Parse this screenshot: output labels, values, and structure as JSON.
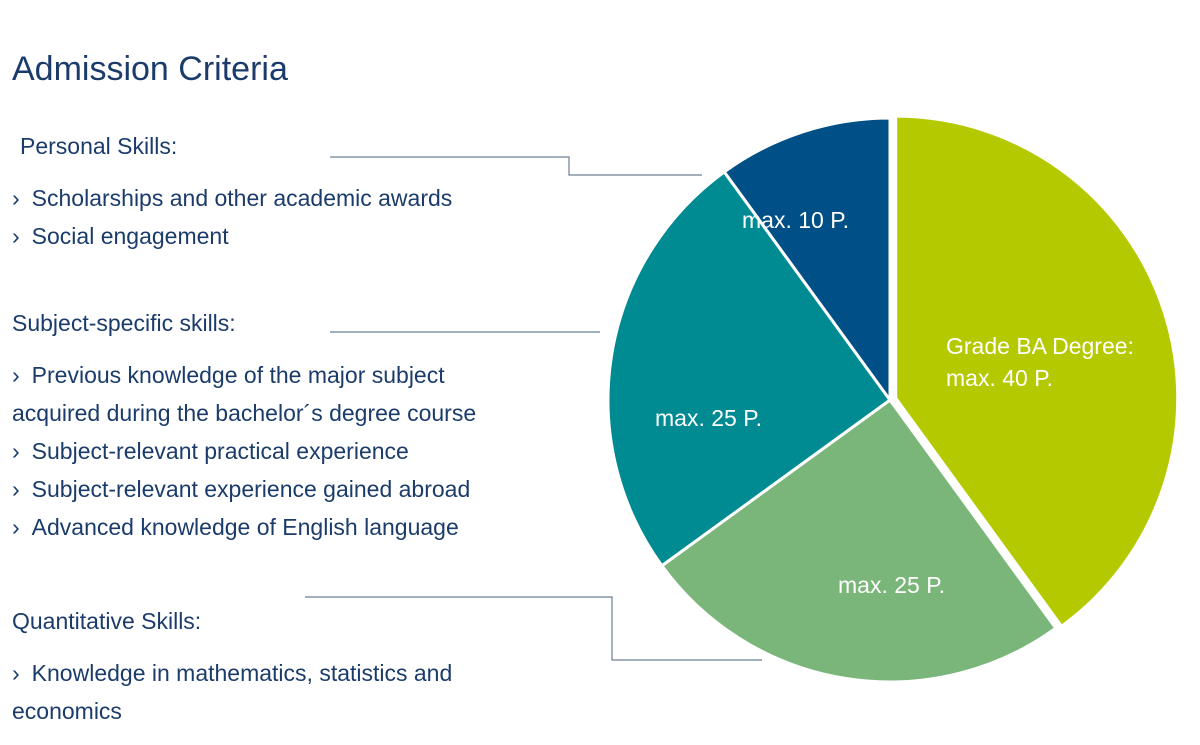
{
  "title": "Admission Criteria",
  "sections": [
    {
      "heading": "Personal Skills:",
      "items": [
        "Scholarships and other academic  awards",
        "Social engagement"
      ]
    },
    {
      "heading": "Subject-specific skills:",
      "items": [
        "Previous knowledge of the major subject",
        "acquired during the bachelor´s degree course",
        "Subject-relevant practical experience",
        "Subject-relevant experience gained abroad",
        "Advanced knowledge of English language"
      ]
    },
    {
      "heading": "Quantitative Skills:",
      "items": [
        "Knowledge in mathematics, statistics and",
        "economics"
      ]
    }
  ],
  "pie": {
    "slices": [
      {
        "label_lines": [
          "Grade BA Degree:",
          "max. 40 P."
        ],
        "value": 40,
        "color": "#b5c900"
      },
      {
        "label_lines": [
          "max. 25 P."
        ],
        "value": 25,
        "color": "#7ab57a"
      },
      {
        "label_lines": [
          "max. 25 P."
        ],
        "value": 25,
        "color": "#008b93"
      },
      {
        "label_lines": [
          "max. 10 P."
        ],
        "value": 10,
        "color": "#004f86"
      }
    ]
  }
}
